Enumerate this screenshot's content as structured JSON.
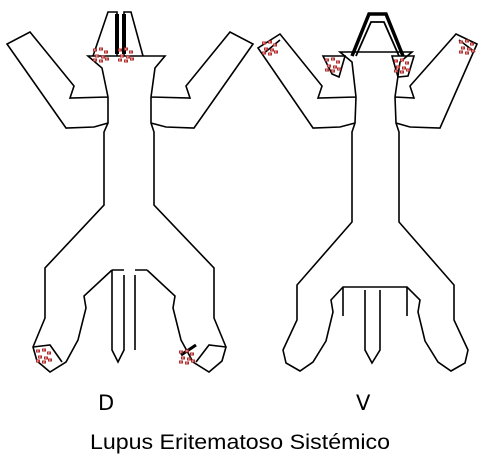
{
  "caption": "Lupus Eritematoso Sistémico",
  "views": [
    {
      "id": "dorsal",
      "label": "D"
    },
    {
      "id": "ventral",
      "label": "V"
    }
  ],
  "colors": {
    "outline": "#000000",
    "lesion": "#b32a2a",
    "lesion_highlight": "#f0e0e0",
    "background": "#ffffff"
  },
  "lesion_icon": "red-lesion-cluster"
}
